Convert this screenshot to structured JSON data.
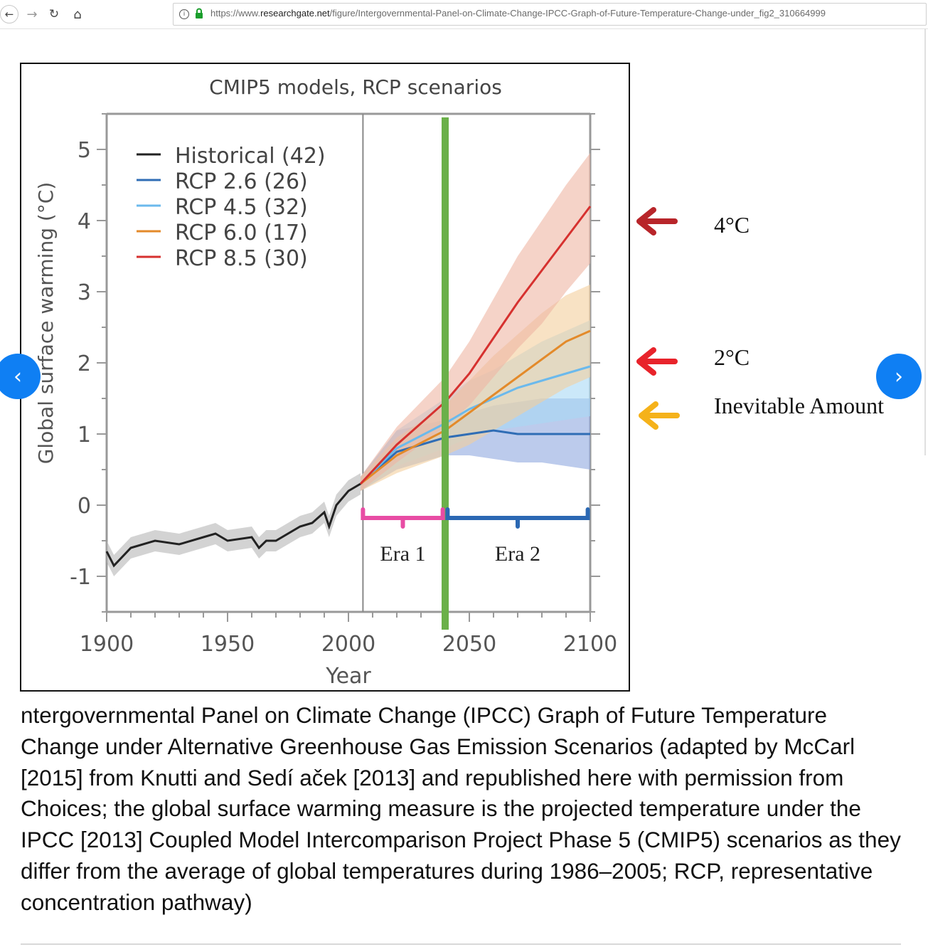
{
  "browser": {
    "url_prefix": "https://www.",
    "url_domain": "researchgate.net",
    "url_path": "/figure/Intergovernmental-Panel-on-Climate-Change-IPCC-Graph-of-Future-Temperature-Change-under_fig2_310664999",
    "back_glyph": "←",
    "forward_glyph": "→",
    "reload_glyph": "↻",
    "home_glyph": "⌂",
    "info_glyph": "i"
  },
  "nav": {
    "prev_glyph": "‹",
    "next_glyph": "›"
  },
  "annotations": {
    "four_c": "4°C",
    "two_c": "2°C",
    "inevitable": "Inevitable Amount",
    "arrow_colors": {
      "four_c": "#b8252a",
      "two_c": "#e8232b",
      "inevitable": "#f5b21a"
    }
  },
  "chart_data": {
    "type": "line",
    "title": "CMIP5 models, RCP scenarios",
    "xlabel": "Year",
    "ylabel": "Global surface warming (°C)",
    "xlim": [
      1900,
      2100
    ],
    "ylim": [
      -1.5,
      5.5
    ],
    "x_ticks": [
      "1900",
      "1950",
      "2000",
      "2050",
      "2100"
    ],
    "y_ticks": [
      "-1",
      "0",
      "1",
      "2",
      "3",
      "4",
      "5"
    ],
    "legend": [
      "Historical (42)",
      "RCP 2.6 (26)",
      "RCP 4.5 (32)",
      "RCP 6.0 (17)",
      "RCP 8.5 (30)"
    ],
    "legend_position": "top-left",
    "series": [
      {
        "name": "Historical (42)",
        "color": "#222222",
        "band": "#b5b5b5",
        "x": [
          1900,
          1903,
          1910,
          1920,
          1930,
          1940,
          1945,
          1950,
          1960,
          1963,
          1966,
          1970,
          1980,
          1985,
          1990,
          1992,
          1995,
          2000,
          2005
        ],
        "y": [
          -0.65,
          -0.85,
          -0.6,
          -0.5,
          -0.55,
          -0.45,
          -0.4,
          -0.5,
          -0.45,
          -0.6,
          -0.5,
          -0.5,
          -0.3,
          -0.25,
          -0.1,
          -0.3,
          0.0,
          0.2,
          0.3
        ],
        "band_width": 0.15
      },
      {
        "name": "RCP 2.6 (26)",
        "color": "#2f6db5",
        "band": "#8fa8e0",
        "x": [
          2005,
          2020,
          2040,
          2050,
          2060,
          2070,
          2080,
          2090,
          2100
        ],
        "y": [
          0.3,
          0.75,
          0.95,
          1.0,
          1.05,
          1.0,
          1.0,
          1.0,
          1.0
        ],
        "lower": [
          0.2,
          0.5,
          0.7,
          0.7,
          0.65,
          0.6,
          0.6,
          0.55,
          0.5
        ],
        "upper": [
          0.4,
          1.05,
          1.2,
          1.3,
          1.4,
          1.45,
          1.5,
          1.5,
          1.5
        ]
      },
      {
        "name": "RCP 4.5 (32)",
        "color": "#6bb9ec",
        "band": "#a9d8f5",
        "x": [
          2005,
          2020,
          2040,
          2050,
          2060,
          2070,
          2080,
          2090,
          2100
        ],
        "y": [
          0.3,
          0.8,
          1.15,
          1.35,
          1.5,
          1.65,
          1.75,
          1.85,
          1.95
        ],
        "lower": [
          0.2,
          0.55,
          0.8,
          0.95,
          1.05,
          1.1,
          1.15,
          1.2,
          1.25
        ],
        "upper": [
          0.4,
          1.05,
          1.5,
          1.75,
          1.9,
          2.1,
          2.3,
          2.45,
          2.6
        ]
      },
      {
        "name": "RCP 6.0 (17)",
        "color": "#e38a2a",
        "band": "#f4cf9d",
        "x": [
          2005,
          2020,
          2040,
          2050,
          2060,
          2070,
          2080,
          2090,
          2100
        ],
        "y": [
          0.3,
          0.7,
          1.05,
          1.3,
          1.55,
          1.8,
          2.05,
          2.3,
          2.45
        ],
        "lower": [
          0.2,
          0.45,
          0.7,
          0.85,
          1.05,
          1.25,
          1.45,
          1.65,
          1.8
        ],
        "upper": [
          0.4,
          0.95,
          1.4,
          1.75,
          2.1,
          2.4,
          2.7,
          2.95,
          3.1
        ]
      },
      {
        "name": "RCP 8.5 (30)",
        "color": "#d6312f",
        "band": "#efb6a4",
        "x": [
          2005,
          2020,
          2040,
          2050,
          2060,
          2070,
          2080,
          2090,
          2100
        ],
        "y": [
          0.3,
          0.85,
          1.45,
          1.85,
          2.35,
          2.85,
          3.3,
          3.75,
          4.2
        ],
        "lower": [
          0.2,
          0.6,
          1.1,
          1.4,
          1.8,
          2.2,
          2.55,
          3.0,
          3.4
        ],
        "upper": [
          0.4,
          1.1,
          1.8,
          2.3,
          2.9,
          3.5,
          4.0,
          4.5,
          4.95
        ]
      }
    ],
    "markers": {
      "divider_year": 2006,
      "green_bar_year": 2040,
      "green_bar_color": "#6bb04a"
    },
    "eras": [
      {
        "label": "Era 1",
        "from": 2006,
        "to": 2039,
        "color": "#e84ca4"
      },
      {
        "label": "Era 2",
        "from": 2041,
        "to": 2099,
        "color": "#2b68b3"
      }
    ]
  },
  "caption": "ntergovernmental Panel on Climate Change (IPCC) Graph of Future Temperature Change under Alternative Greenhouse Gas Emission Scenarios (adapted by McCarl [2015] from Knutti and Sedí aček [2013] and republished here with permission from Choices; the global surface warming measure is the projected temperature under the IPCC [2013] Coupled Model Intercomparison Project Phase 5 (CMIP5) scenarios as they differ from the average of global temperatures during 1986–2005; RCP, representative concentration pathway)"
}
